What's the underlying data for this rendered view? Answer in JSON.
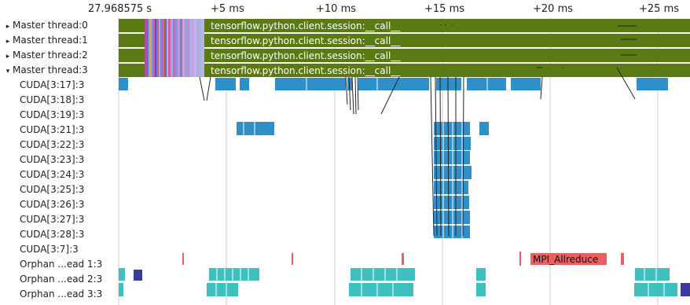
{
  "timeline": {
    "start_label": "27.968575 s",
    "ticks": [
      "+5 ms",
      "+10 ms",
      "+15 ms",
      "+20 ms",
      "+25 ms"
    ],
    "ms_range": [
      0,
      28.44
    ]
  },
  "threads": [
    {
      "label": "Master thread:0",
      "expander": "▸",
      "slice": "tensorflow.python.client.session:__call__"
    },
    {
      "label": "Master thread:1",
      "expander": "▸",
      "slice": "tensorflow.python.client.session:__call__"
    },
    {
      "label": "Master thread:2",
      "expander": "▸",
      "slice": "tensorflow.python.client.session:__call__"
    },
    {
      "label": "Master thread:3",
      "expander": "▾",
      "slice": "tensorflow.python.client.session:__call__"
    }
  ],
  "cuda_tracks": [
    "CUDA[3:17]:3",
    "CUDA[3:18]:3",
    "CUDA[3:19]:3",
    "CUDA[3:21]:3",
    "CUDA[3:22]:3",
    "CUDA[3:23]:3",
    "CUDA[3:24]:3",
    "CUDA[3:25]:3",
    "CUDA[3:26]:3",
    "CUDA[3:27]:3",
    "CUDA[3:28]:3",
    "CUDA[3:7]:3"
  ],
  "orphan_tracks": [
    "Orphan ...ead 1:3",
    "Orphan ...ead 2:3",
    "Orphan ...ead 3:3"
  ],
  "mpi_slice": "MPI_Allreduce",
  "colors": {
    "master": "#5a7a14",
    "cuda": "#2f8fc8",
    "orphan_teal": "#3fc0c0",
    "mpi": "#e86060",
    "navy": "#3a3aa0",
    "grid": "#cccccc"
  }
}
